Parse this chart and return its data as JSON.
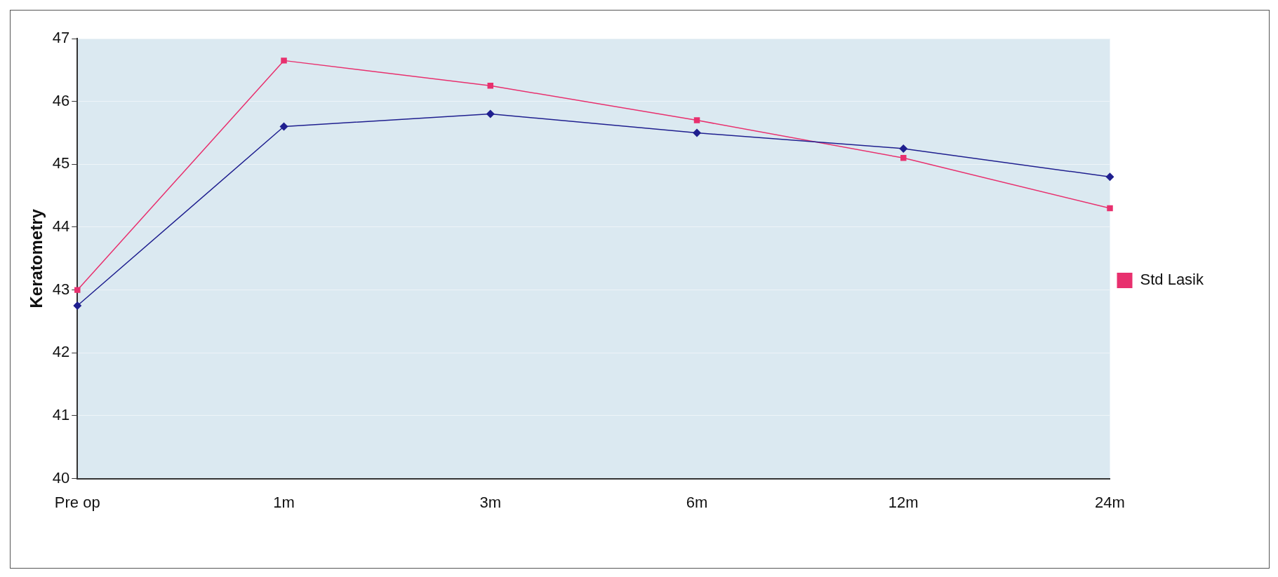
{
  "chart_data": {
    "type": "line",
    "ylabel": "Keratometry",
    "categories": [
      "Pre op",
      "1m",
      "3m",
      "6m",
      "12m",
      "24m"
    ],
    "series": [
      {
        "color": "#1f1f8f",
        "marker": "diamond",
        "values": [
          42.75,
          45.6,
          45.8,
          45.5,
          45.25,
          44.8
        ]
      },
      {
        "name": "Std Lasik",
        "color": "#e8306e",
        "marker": "square",
        "values": [
          43.0,
          46.65,
          46.25,
          45.7,
          45.1,
          44.3
        ]
      }
    ],
    "ylim": [
      40,
      47
    ],
    "yticks": [
      40,
      41,
      42,
      43,
      44,
      45,
      46,
      47
    ],
    "grid": "y",
    "legend": "right",
    "line_style": "solid"
  }
}
